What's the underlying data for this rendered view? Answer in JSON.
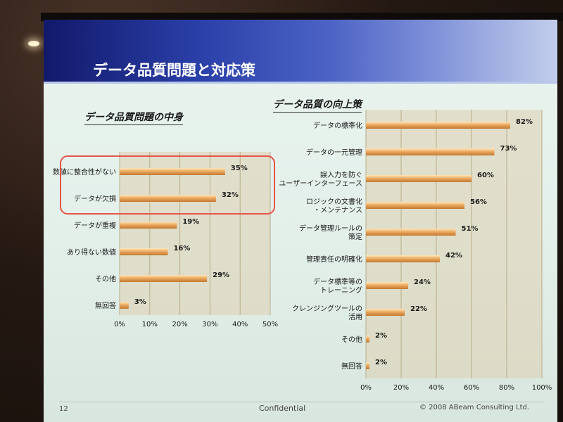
{
  "slide": {
    "title": "データ品質問題と対応策",
    "page": "12",
    "confidential": "Confidential",
    "copyright": "© 2008 ABeam Consulting Ltd."
  },
  "colors": {
    "bar": "#e8a45a",
    "highlight": "#e5544a",
    "plot_bg": "#dcd0b0"
  },
  "chart_data": [
    {
      "type": "bar",
      "orientation": "horizontal",
      "title": "データ品質問題の中身",
      "categories": [
        "数値に整合性がない",
        "データが欠損",
        "データが重複",
        "あり得ない数値",
        "その他",
        "無回答"
      ],
      "values": [
        35,
        32,
        19,
        16,
        29,
        3
      ],
      "value_labels": [
        "35%",
        "32%",
        "19%",
        "16%",
        "29%",
        "3%"
      ],
      "xlim": [
        0,
        50
      ],
      "xticks": [
        "0%",
        "10%",
        "20%",
        "30%",
        "40%",
        "50%"
      ],
      "highlighted": [
        "数値に整合性がない",
        "データが欠損"
      ]
    },
    {
      "type": "bar",
      "orientation": "horizontal",
      "title": "データ品質の向上策",
      "categories": [
        "データの標準化",
        "データの一元管理",
        "誤入力を防ぐ\nユーザーインターフェース",
        "ロジックの文書化\n・メンテナンス",
        "データ管理ルールの\n策定",
        "管理責任の明確化",
        "データ標準等の\nトレーニング",
        "クレンジングツールの\n活用",
        "その他",
        "無回答"
      ],
      "values": [
        82,
        73,
        60,
        56,
        51,
        42,
        24,
        22,
        2,
        2
      ],
      "value_labels": [
        "82%",
        "73%",
        "60%",
        "56%",
        "51%",
        "42%",
        "24%",
        "22%",
        "2%",
        "2%"
      ],
      "xlim": [
        0,
        100
      ],
      "xticks": [
        "0%",
        "20%",
        "40%",
        "60%",
        "80%",
        "100%"
      ]
    }
  ]
}
